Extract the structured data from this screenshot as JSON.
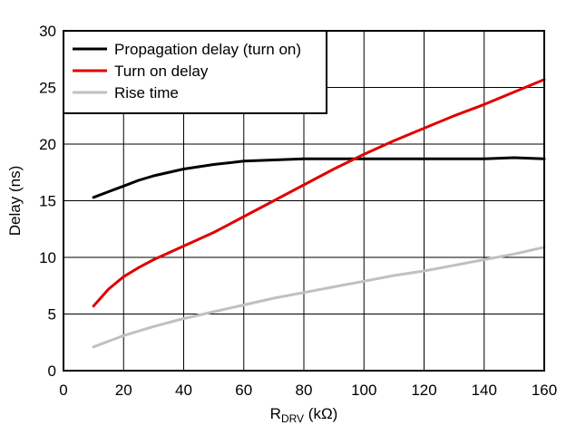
{
  "chart_data": {
    "type": "line",
    "xlabel_main": "R",
    "xlabel_sub": "DRV",
    "xlabel_unit": " (kΩ)",
    "ylabel": "Delay (ns)",
    "xlim": [
      0,
      160
    ],
    "ylim": [
      0,
      30
    ],
    "xticks": [
      0,
      20,
      40,
      60,
      80,
      100,
      120,
      140,
      160
    ],
    "yticks": [
      0,
      5,
      10,
      15,
      20,
      25,
      30
    ],
    "grid": true,
    "legend_position": "top-left",
    "series": [
      {
        "name": "Propagation delay (turn on)",
        "color": "#000000",
        "x": [
          10,
          15,
          20,
          25,
          30,
          40,
          50,
          60,
          70,
          80,
          100,
          120,
          140,
          150,
          160
        ],
        "y": [
          15.3,
          15.8,
          16.3,
          16.8,
          17.2,
          17.8,
          18.2,
          18.5,
          18.6,
          18.7,
          18.7,
          18.7,
          18.7,
          18.8,
          18.7
        ]
      },
      {
        "name": "Turn on delay",
        "color": "#e00000",
        "x": [
          10,
          15,
          20,
          25,
          30,
          40,
          50,
          60,
          70,
          80,
          90,
          100,
          110,
          120,
          130,
          140,
          150,
          160
        ],
        "y": [
          5.7,
          7.2,
          8.3,
          9.1,
          9.8,
          11.0,
          12.2,
          13.6,
          15.0,
          16.4,
          17.8,
          19.1,
          20.3,
          21.4,
          22.5,
          23.5,
          24.6,
          25.7
        ]
      },
      {
        "name": "Rise time",
        "color": "#c0c0c0",
        "x": [
          10,
          20,
          30,
          40,
          50,
          60,
          70,
          80,
          90,
          100,
          110,
          120,
          130,
          140,
          150,
          160
        ],
        "y": [
          2.1,
          3.1,
          3.9,
          4.6,
          5.2,
          5.8,
          6.4,
          6.9,
          7.4,
          7.9,
          8.4,
          8.8,
          9.3,
          9.8,
          10.3,
          10.9
        ]
      }
    ]
  }
}
